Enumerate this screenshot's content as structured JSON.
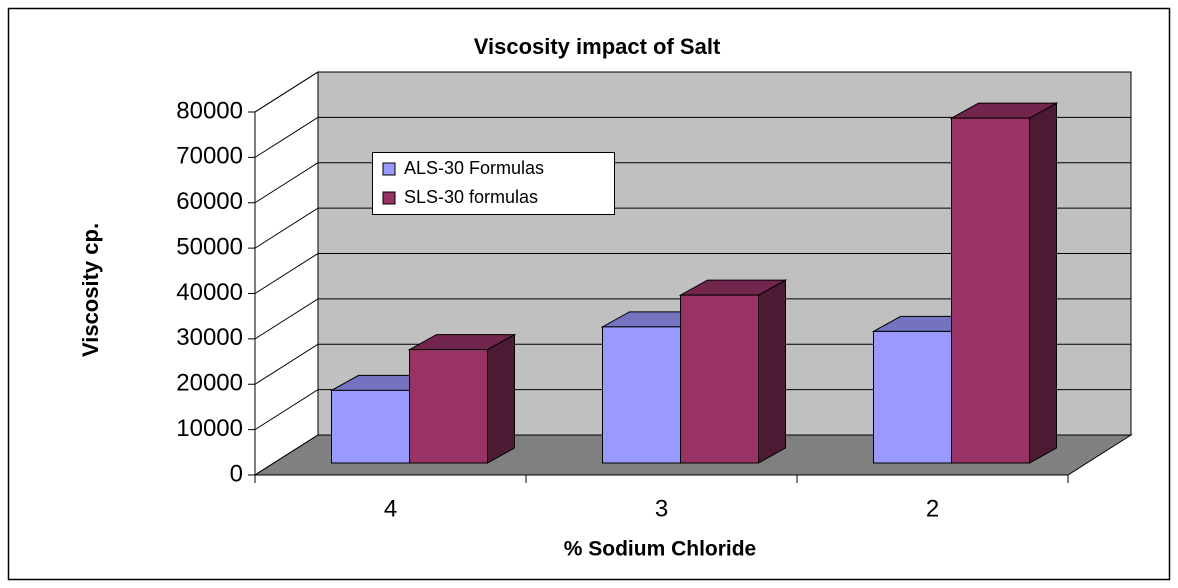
{
  "chart_data": {
    "type": "bar3d",
    "title": "Viscosity impact of Salt",
    "x_label": "% Sodium Chloride",
    "y_label": "Viscosity cp.",
    "categories": [
      "4",
      "3",
      "2"
    ],
    "series": [
      {
        "name": "ALS-30 Formulas",
        "color": "#9999ff",
        "values": [
          16000,
          30000,
          29000
        ]
      },
      {
        "name": "SLS-30 formulas",
        "color": "#993366",
        "values": [
          25000,
          37000,
          76000
        ]
      }
    ],
    "ylim": [
      0,
      80000
    ],
    "yticks": [
      0,
      10000,
      20000,
      30000,
      40000,
      50000,
      60000,
      70000,
      80000
    ],
    "grid": true
  }
}
